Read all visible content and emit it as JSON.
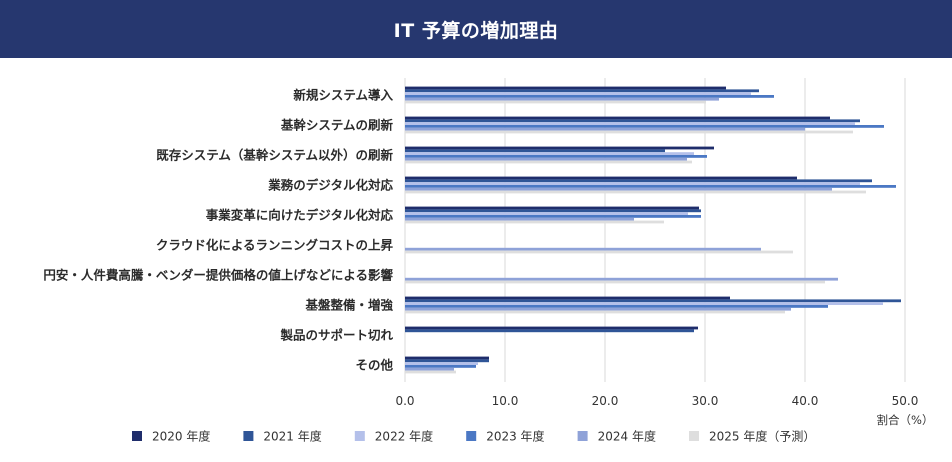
{
  "colors": {
    "header_bg": "#26376f",
    "header_text": "#ffffff",
    "grid": "#d9d9d9",
    "text": "#333333"
  },
  "chart_data": {
    "type": "bar",
    "orientation": "horizontal",
    "title": "IT 予算の増加理由",
    "xlabel": "割合（%）",
    "ylabel": "",
    "xlim": [
      0,
      50
    ],
    "xticks": [
      0,
      10,
      20,
      30,
      40,
      50
    ],
    "xtick_labels": [
      "0.0",
      "10.0",
      "20.0",
      "30.0",
      "40.0",
      "50.0"
    ],
    "grid": true,
    "legend_position": "bottom",
    "categories": [
      "新規システム導入",
      "基幹システムの刷新",
      "既存システム（基幹システム以外）の刷新",
      "業務のデジタル化対応",
      "事業変革に向けたデジタル化対応",
      "クラウド化によるランニングコストの上昇",
      "円安・人件費高騰・ベンダー提供価格の値上げなどによる影響",
      "基盤整備・増強",
      "製品のサポート切れ",
      "その他"
    ],
    "series": [
      {
        "name": "2020 年度",
        "color": "#1f2d6b",
        "values": [
          32.1,
          42.5,
          30.9,
          39.2,
          29.4,
          null,
          null,
          32.5,
          29.3,
          8.4
        ]
      },
      {
        "name": "2021 年度",
        "color": "#2f5597",
        "values": [
          35.4,
          45.5,
          26.0,
          46.7,
          29.6,
          null,
          null,
          49.6,
          28.9,
          8.4
        ]
      },
      {
        "name": "2022 年度",
        "color": "#b4c0ea",
        "values": [
          34.6,
          45.0,
          28.9,
          45.5,
          28.3,
          null,
          null,
          47.8,
          null,
          7.3
        ]
      },
      {
        "name": "2023 年度",
        "color": "#4b78c4",
        "values": [
          36.9,
          47.9,
          30.2,
          49.1,
          29.6,
          null,
          null,
          42.3,
          null,
          7.1
        ]
      },
      {
        "name": "2024 年度",
        "color": "#8fa2d8",
        "values": [
          31.4,
          40.0,
          28.2,
          42.7,
          22.9,
          35.6,
          43.3,
          38.6,
          null,
          4.9
        ]
      },
      {
        "name": "2025 年度（予測）",
        "color": "#dedede",
        "values": [
          30.1,
          44.8,
          28.7,
          46.1,
          25.9,
          38.8,
          42.0,
          38.0,
          null,
          5.1
        ]
      }
    ]
  }
}
